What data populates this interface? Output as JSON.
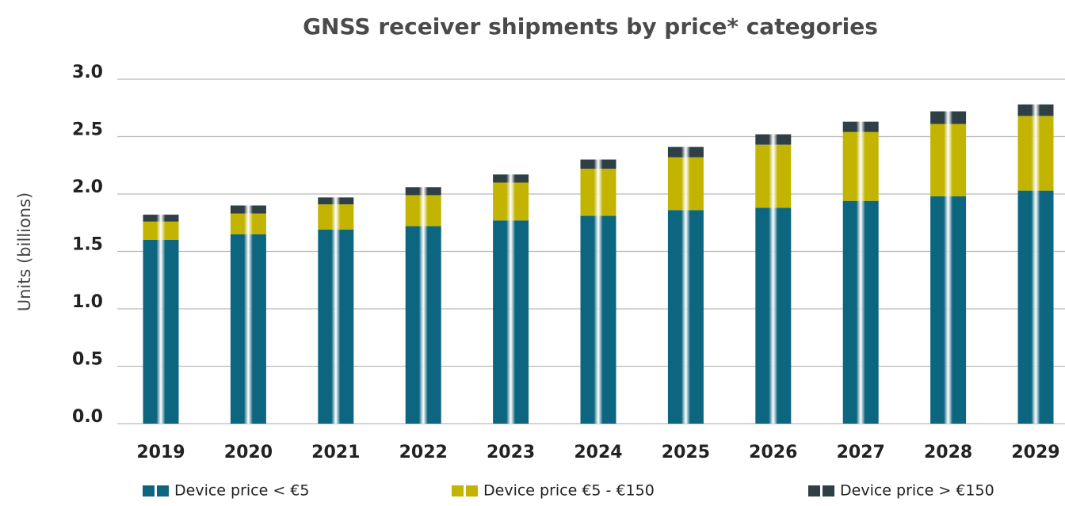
{
  "chart_data": {
    "type": "stacked_bar",
    "title": "GNSS receiver shipments by price* categories",
    "y_label": "Units (billions)",
    "categories": [
      "2019",
      "2020",
      "2021",
      "2022",
      "2023",
      "2024",
      "2025",
      "2026",
      "2027",
      "2028",
      "2029"
    ],
    "series": [
      {
        "name": "Device price < €5",
        "color": "#0d6680",
        "values": [
          1.6,
          1.65,
          1.69,
          1.72,
          1.77,
          1.81,
          1.86,
          1.88,
          1.94,
          1.98,
          2.03
        ]
      },
      {
        "name": "Device price €5 - €150",
        "color": "#c2b400",
        "values": [
          0.16,
          0.18,
          0.22,
          0.27,
          0.33,
          0.41,
          0.46,
          0.55,
          0.6,
          0.63,
          0.65
        ]
      },
      {
        "name": "Device price > €150",
        "color": "#2e3f45",
        "values": [
          0.06,
          0.07,
          0.06,
          0.07,
          0.07,
          0.08,
          0.09,
          0.09,
          0.09,
          0.11,
          0.1
        ]
      }
    ],
    "ylim": [
      0,
      3
    ],
    "yticks": [
      {
        "value": 0,
        "label": "0.0"
      },
      0.5,
      {
        "value": 1,
        "label": "1.0"
      },
      1.5,
      {
        "value": 2,
        "label": "2.0"
      },
      2.5,
      {
        "value": 3,
        "label": "3.0"
      }
    ],
    "grid": true,
    "legend": "bottom"
  }
}
